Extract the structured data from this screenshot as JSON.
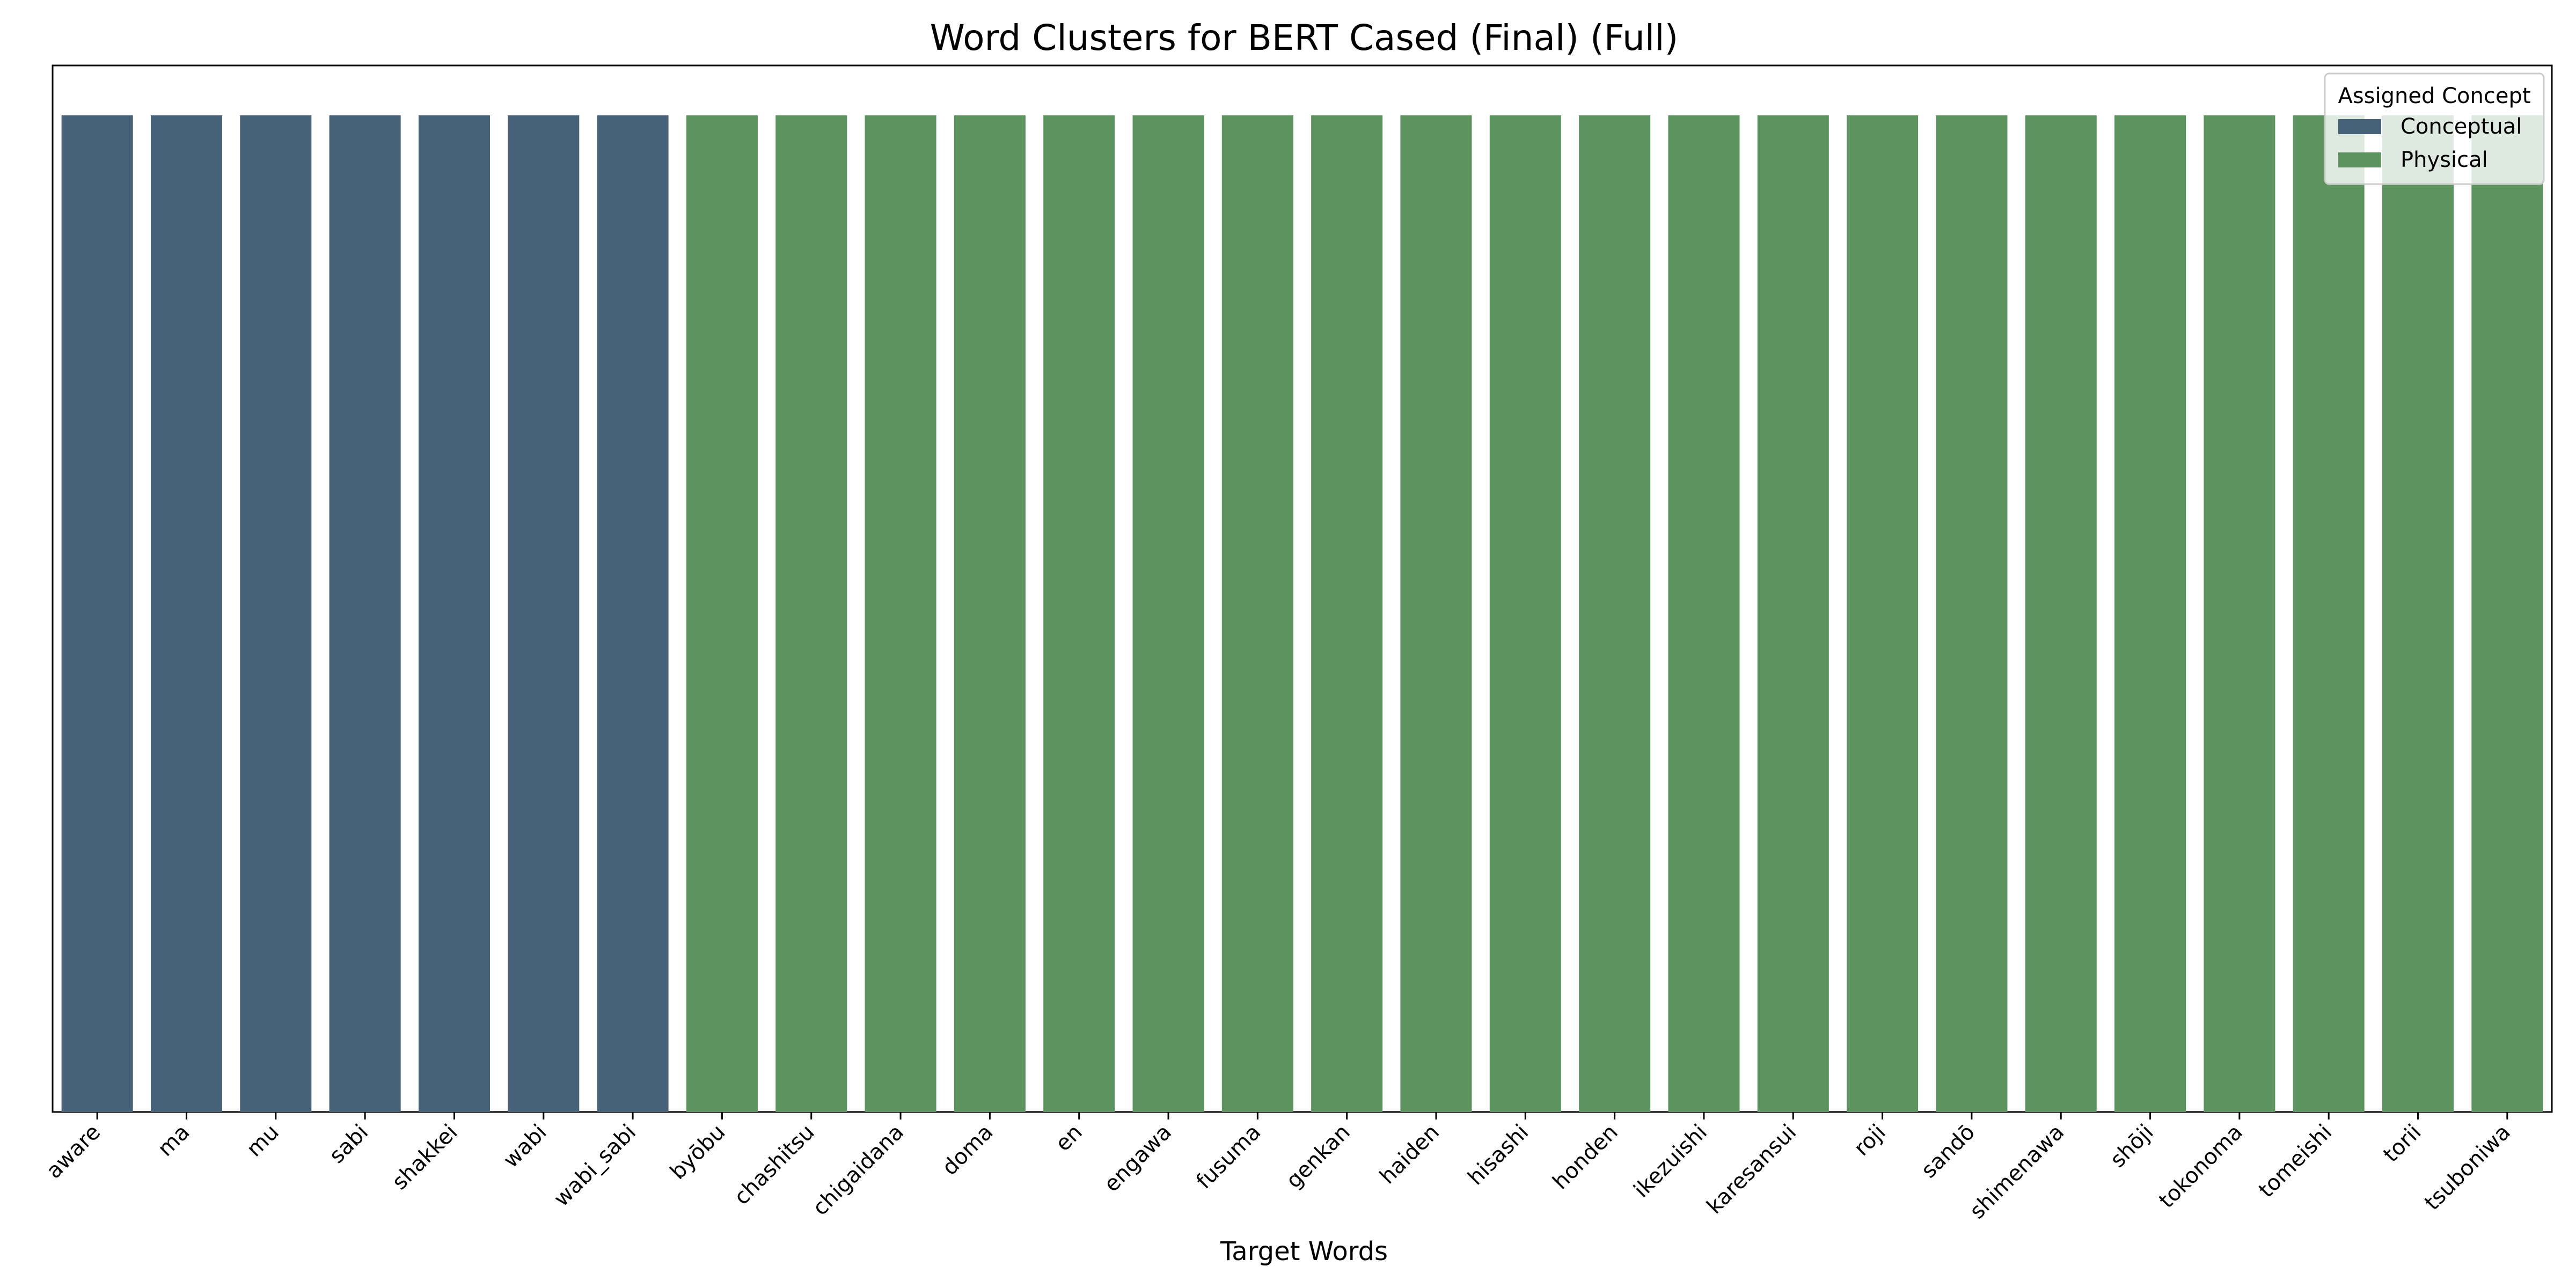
{
  "chart_data": {
    "type": "bar",
    "title": "Word Clusters for BERT Cased (Final) (Full)",
    "xlabel": "Target Words",
    "ylabel": "",
    "categories": [
      "aware",
      "ma",
      "mu",
      "sabi",
      "shakkei",
      "wabi",
      "wabi_sabi",
      "byōbu",
      "chashitsu",
      "chigaidana",
      "doma",
      "en",
      "engawa",
      "fusuma",
      "genkan",
      "haiden",
      "hisashi",
      "honden",
      "ikezuishi",
      "karesansui",
      "roji",
      "sandō",
      "shimenawa",
      "shōji",
      "tokonoma",
      "tomeishi",
      "torii",
      "tsuboniwa"
    ],
    "values": [
      1,
      1,
      1,
      1,
      1,
      1,
      1,
      1,
      1,
      1,
      1,
      1,
      1,
      1,
      1,
      1,
      1,
      1,
      1,
      1,
      1,
      1,
      1,
      1,
      1,
      1,
      1,
      1
    ],
    "concepts": [
      "Conceptual",
      "Conceptual",
      "Conceptual",
      "Conceptual",
      "Conceptual",
      "Conceptual",
      "Conceptual",
      "Physical",
      "Physical",
      "Physical",
      "Physical",
      "Physical",
      "Physical",
      "Physical",
      "Physical",
      "Physical",
      "Physical",
      "Physical",
      "Physical",
      "Physical",
      "Physical",
      "Physical",
      "Physical",
      "Physical",
      "Physical",
      "Physical",
      "Physical",
      "Physical"
    ],
    "ylim": [
      0,
      1.05
    ],
    "grid": false,
    "legend": {
      "title": "Assigned Concept",
      "placement": "top-right",
      "entries": [
        {
          "name": "Conceptual",
          "color": "#476178"
        },
        {
          "name": "Physical",
          "color": "#5d935e"
        }
      ]
    }
  }
}
